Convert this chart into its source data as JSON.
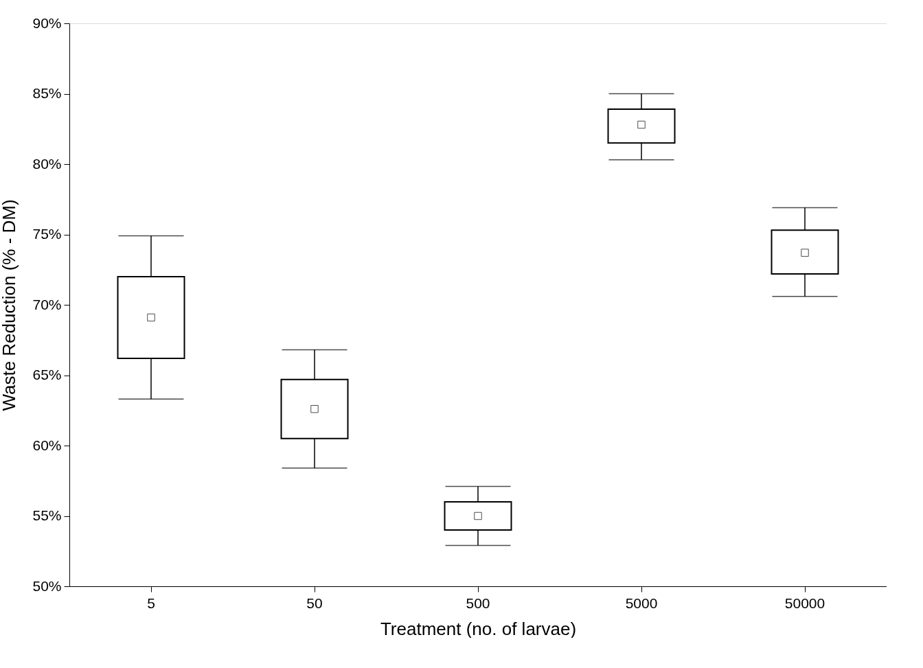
{
  "chart_data": {
    "type": "box",
    "xlabel": "Treatment (no. of larvae)",
    "ylabel": "Waste Reduction (% - DM)",
    "categories": [
      "5",
      "50",
      "500",
      "5000",
      "50000"
    ],
    "boxes": [
      {
        "low": 63.3,
        "q1": 66.2,
        "median": 69.1,
        "q3": 72.0,
        "high": 74.9
      },
      {
        "low": 58.4,
        "q1": 60.5,
        "median": 62.6,
        "q3": 64.7,
        "high": 66.8
      },
      {
        "low": 52.9,
        "q1": 54.0,
        "median": 55.0,
        "q3": 56.0,
        "high": 57.1
      },
      {
        "low": 80.3,
        "q1": 81.5,
        "median": 82.8,
        "q3": 83.9,
        "high": 85.0
      },
      {
        "low": 70.6,
        "q1": 72.2,
        "median": 73.7,
        "q3": 75.3,
        "high": 76.9
      }
    ],
    "ylim": [
      50,
      90
    ],
    "yticks": [
      {
        "value": 50,
        "label": "50%"
      },
      {
        "value": 55,
        "label": "55%"
      },
      {
        "value": 60,
        "label": "60%"
      },
      {
        "value": 65,
        "label": "65%"
      },
      {
        "value": 70,
        "label": "70%"
      },
      {
        "value": 75,
        "label": "75%"
      },
      {
        "value": 80,
        "label": "80%"
      },
      {
        "value": 85,
        "label": "85%"
      },
      {
        "value": 90,
        "label": "90%"
      }
    ]
  }
}
